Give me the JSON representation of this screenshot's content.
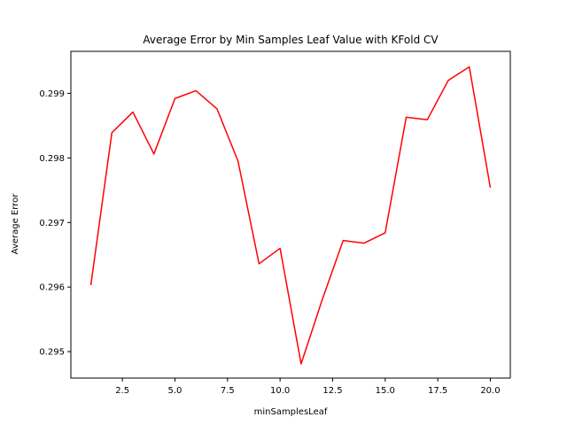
{
  "chart_data": {
    "type": "line",
    "title": "Average Error by Min Samples Leaf Value with KFold CV",
    "xlabel": "minSamplesLeaf",
    "ylabel": "Average Error",
    "xlim": [
      0.05,
      20.95
    ],
    "ylim": [
      0.29459,
      0.29965
    ],
    "xticks": [
      2.5,
      5.0,
      7.5,
      10.0,
      12.5,
      15.0,
      17.5,
      20.0
    ],
    "xtick_labels": [
      "2.5",
      "5.0",
      "7.5",
      "10.0",
      "12.5",
      "15.0",
      "17.5",
      "20.0"
    ],
    "yticks": [
      0.295,
      0.296,
      0.297,
      0.298,
      0.299
    ],
    "ytick_labels": [
      "0.295",
      "0.296",
      "0.297",
      "0.298",
      "0.299"
    ],
    "grid": false,
    "series": [
      {
        "color": "#ff0000",
        "x": [
          1,
          2,
          3,
          4,
          5,
          6,
          7,
          8,
          9,
          10,
          11,
          12,
          13,
          14,
          15,
          16,
          17,
          18,
          19,
          20
        ],
        "y": [
          0.29603,
          0.29839,
          0.29871,
          0.29806,
          0.29892,
          0.29904,
          0.29876,
          0.29795,
          0.29636,
          0.2966,
          0.29481,
          0.2958,
          0.29672,
          0.29668,
          0.29684,
          0.29863,
          0.29859,
          0.2992,
          0.29941,
          0.29754
        ]
      }
    ]
  }
}
